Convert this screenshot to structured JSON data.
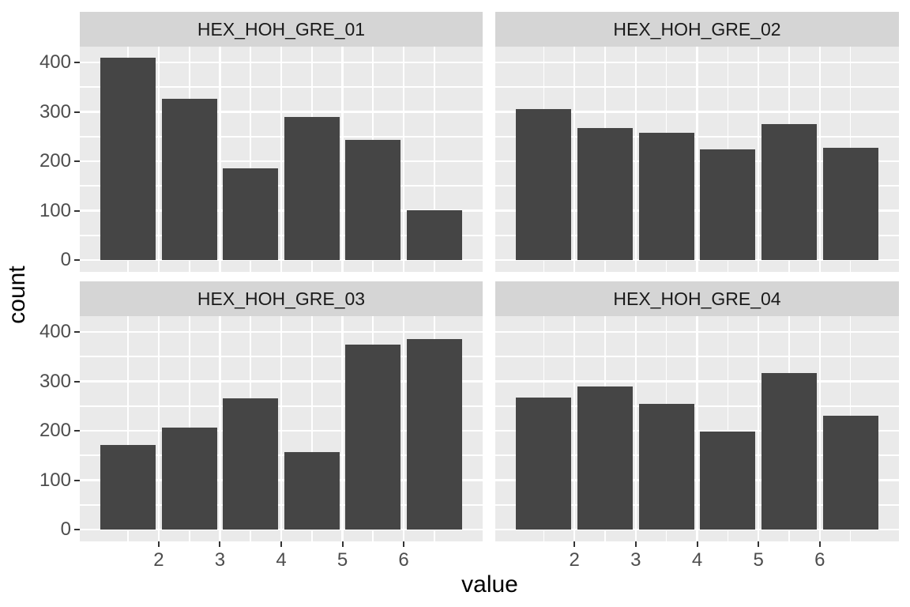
{
  "figure_title": "",
  "chart_data": {
    "type": "bar",
    "subtype": "faceted-histogram",
    "title": "",
    "xlabel": "value",
    "ylabel": "count",
    "facets": [
      {
        "label": "HEX_HOH_GRE_01",
        "values": [
          410,
          327,
          185,
          289,
          243,
          101
        ]
      },
      {
        "label": "HEX_HOH_GRE_02",
        "values": [
          305,
          267,
          257,
          224,
          276,
          228
        ]
      },
      {
        "label": "HEX_HOH_GRE_03",
        "values": [
          171,
          207,
          265,
          157,
          375,
          385
        ]
      },
      {
        "label": "HEX_HOH_GRE_04",
        "values": [
          268,
          289,
          254,
          198,
          317,
          231
        ]
      }
    ],
    "bin_centers": [
      1.5,
      2.5,
      3.5,
      4.5,
      5.5,
      6.5
    ],
    "bar_width": 0.9,
    "x_breaks": [
      2,
      3,
      4,
      5,
      6
    ],
    "y_breaks": [
      0,
      100,
      200,
      300,
      400
    ],
    "x_minor_breaks": [
      1.5,
      2.5,
      3.5,
      4.5,
      5.5,
      6.5
    ],
    "y_minor_breaks": [
      50,
      150,
      250,
      350
    ],
    "xlim": [
      0.71,
      7.29
    ],
    "ylim": [
      -24,
      432
    ],
    "grid": true,
    "legend_position": "none",
    "colors": {
      "bar": "#454545",
      "panel_bg": "#eaeaea",
      "strip_bg": "#d5d5d5",
      "grid": "#ffffff",
      "tick_mark": "#333333",
      "tick_label": "#4d4d4d",
      "strip_text": "#1a1a1a",
      "axis_title": "#000000",
      "background": "#ffffff"
    }
  }
}
